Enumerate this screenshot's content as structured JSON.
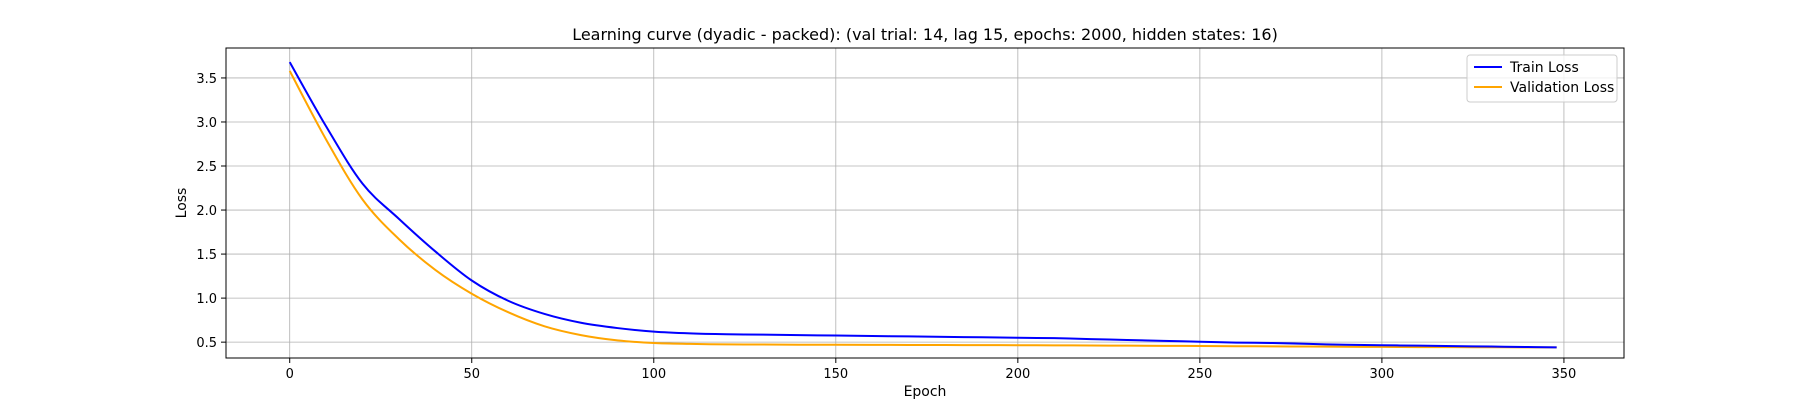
{
  "chart_data": {
    "type": "line",
    "title": "Learning curve (dyadic - packed): (val trial: 14, lag 15, epochs: 2000, hidden states: 16)",
    "xlabel": "Epoch",
    "ylabel": "Loss",
    "xlim": [
      -17.5,
      366.5
    ],
    "ylim": [
      0.32,
      3.84
    ],
    "xticks": [
      0,
      50,
      100,
      150,
      200,
      250,
      300,
      350
    ],
    "yticks": [
      0.5,
      1.0,
      1.5,
      2.0,
      2.5,
      3.0,
      3.5
    ],
    "xtick_labels": [
      "0",
      "50",
      "100",
      "150",
      "200",
      "250",
      "300",
      "350"
    ],
    "ytick_labels": [
      "0.5",
      "1.0",
      "1.5",
      "2.0",
      "2.5",
      "3.0",
      "3.5"
    ],
    "grid": true,
    "legend_position": "top-right",
    "series": [
      {
        "name": "Train Loss",
        "color": "#0000ff",
        "x": [
          0,
          10,
          20,
          30,
          40,
          50,
          60,
          70,
          80,
          90,
          100,
          110,
          120,
          130,
          140,
          150,
          160,
          170,
          180,
          190,
          200,
          210,
          220,
          230,
          240,
          250,
          260,
          270,
          280,
          290,
          300,
          310,
          320,
          330,
          340,
          348
        ],
        "y": [
          3.68,
          2.95,
          2.3,
          1.9,
          1.53,
          1.2,
          0.97,
          0.82,
          0.72,
          0.66,
          0.62,
          0.6,
          0.59,
          0.585,
          0.58,
          0.575,
          0.57,
          0.565,
          0.56,
          0.555,
          0.55,
          0.545,
          0.535,
          0.525,
          0.515,
          0.505,
          0.495,
          0.49,
          0.48,
          0.47,
          0.465,
          0.46,
          0.455,
          0.45,
          0.445,
          0.44
        ]
      },
      {
        "name": "Validation Loss",
        "color": "#ffa500",
        "x": [
          0,
          10,
          20,
          30,
          40,
          50,
          60,
          70,
          80,
          90,
          100,
          110,
          120,
          130,
          140,
          150,
          160,
          170,
          180,
          190,
          200,
          210,
          220,
          230,
          240,
          250,
          260,
          270,
          280,
          290,
          300,
          310,
          320,
          330,
          340,
          348
        ],
        "y": [
          3.58,
          2.8,
          2.12,
          1.67,
          1.32,
          1.05,
          0.84,
          0.68,
          0.58,
          0.52,
          0.49,
          0.48,
          0.475,
          0.473,
          0.471,
          0.47,
          0.469,
          0.468,
          0.467,
          0.466,
          0.465,
          0.464,
          0.462,
          0.46,
          0.458,
          0.456,
          0.454,
          0.452,
          0.45,
          0.448,
          0.446,
          0.444,
          0.443,
          0.442,
          0.441,
          0.44
        ]
      }
    ]
  }
}
